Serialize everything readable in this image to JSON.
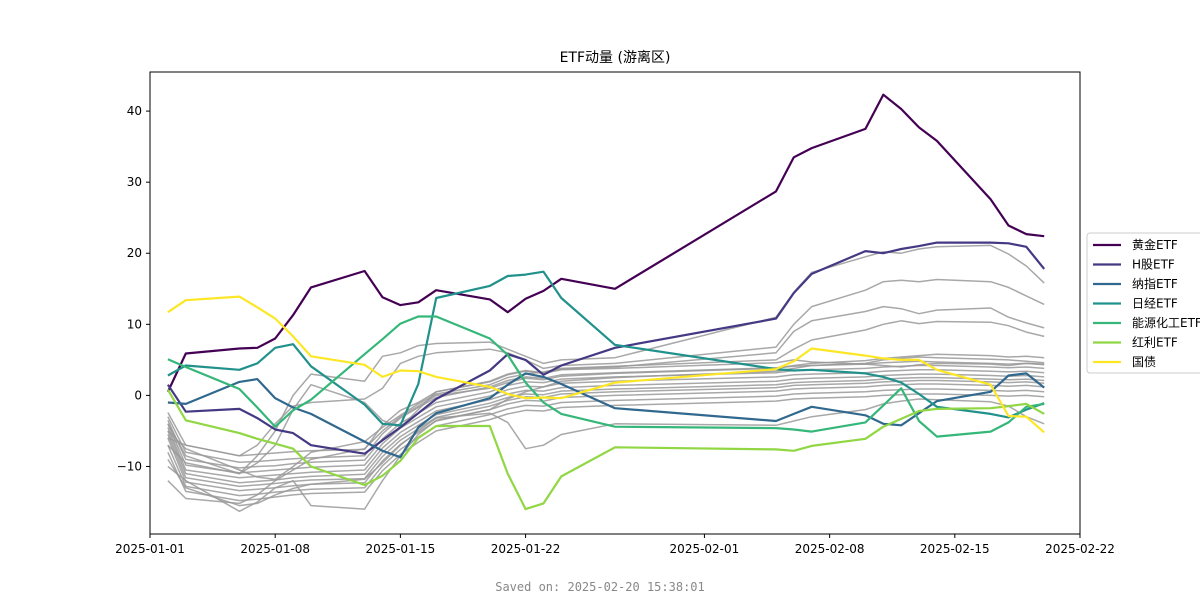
{
  "chart_data": {
    "type": "line",
    "title": "ETF动量 (游离区)",
    "xlabel": "",
    "ylabel": "",
    "x_range": [
      "2025-01-01",
      "2025-02-22"
    ],
    "ylim": [
      -19.5,
      45.5
    ],
    "x_ticks": [
      "2025-01-01",
      "2025-01-08",
      "2025-01-15",
      "2025-01-22",
      "2025-02-01",
      "2025-02-08",
      "2025-02-15",
      "2025-02-22"
    ],
    "y_ticks": [
      -10,
      0,
      10,
      20,
      30,
      40
    ],
    "grid": false,
    "legend_position": "right",
    "dates": [
      "2025-01-02",
      "2025-01-03",
      "2025-01-06",
      "2025-01-07",
      "2025-01-08",
      "2025-01-09",
      "2025-01-10",
      "2025-01-13",
      "2025-01-14",
      "2025-01-15",
      "2025-01-16",
      "2025-01-17",
      "2025-01-20",
      "2025-01-21",
      "2025-01-22",
      "2025-01-23",
      "2025-01-24",
      "2025-01-27",
      "2025-02-05",
      "2025-02-06",
      "2025-02-07",
      "2025-02-10",
      "2025-02-11",
      "2025-02-12",
      "2025-02-13",
      "2025-02-14",
      "2025-02-17",
      "2025-02-18",
      "2025-02-19",
      "2025-02-20"
    ],
    "series": [
      {
        "name": "黄金ETF",
        "color": "#440154",
        "values": [
          0.5,
          5.9,
          6.6,
          6.7,
          8.0,
          11.3,
          15.2,
          17.5,
          13.8,
          12.7,
          13.1,
          14.8,
          13.5,
          11.7,
          13.6,
          14.7,
          16.4,
          15.0,
          28.7,
          33.5,
          34.8,
          37.5,
          42.3,
          40.3,
          37.7,
          35.8,
          27.6,
          23.9,
          22.7,
          22.4
        ]
      },
      {
        "name": "H股ETF",
        "color": "#443983",
        "values": [
          1.5,
          -2.3,
          -1.9,
          -3.2,
          -4.8,
          -5.3,
          -7.0,
          -8.2,
          -6.3,
          -4.5,
          -2.5,
          -0.5,
          3.5,
          5.8,
          5.0,
          2.9,
          4.2,
          6.7,
          10.8,
          14.4,
          17.1,
          20.3,
          20.0,
          20.6,
          21.0,
          21.5,
          21.5,
          21.4,
          20.9,
          17.8
        ]
      },
      {
        "name": "纳指ETF",
        "color": "#31688e",
        "values": [
          -1.0,
          -1.2,
          1.9,
          2.3,
          -0.4,
          -1.7,
          -2.6,
          -6.5,
          -7.8,
          -8.7,
          -4.5,
          -2.5,
          -0.4,
          1.5,
          3.1,
          2.6,
          1.6,
          -1.8,
          -3.6,
          -2.6,
          -1.6,
          -2.8,
          -4.0,
          -4.2,
          -2.5,
          -0.8,
          0.5,
          2.8,
          3.1,
          1.1
        ]
      },
      {
        "name": "日经ETF",
        "color": "#21918c",
        "values": [
          2.8,
          4.2,
          3.6,
          4.5,
          6.7,
          7.2,
          4.1,
          -1.3,
          -4.0,
          -4.2,
          1.6,
          13.7,
          15.4,
          16.8,
          17.0,
          17.4,
          13.7,
          7.1,
          3.7,
          3.5,
          3.6,
          3.1,
          2.6,
          1.8,
          0.2,
          -1.6,
          -2.6,
          -3.1,
          -2.0,
          -1.1
        ]
      },
      {
        "name": "能源化工ETF",
        "color": "#35b779",
        "values": [
          5.1,
          4.0,
          0.9,
          -1.7,
          -4.4,
          -2.1,
          -0.6,
          5.8,
          7.9,
          10.1,
          11.1,
          11.1,
          8.0,
          5.7,
          1.8,
          -1.0,
          -2.6,
          -4.4,
          -4.6,
          -4.8,
          -5.1,
          -3.8,
          -1.4,
          1.0,
          -3.6,
          -5.8,
          -5.1,
          -3.8,
          -1.6,
          -1.2
        ]
      },
      {
        "name": "红利ETF",
        "color": "#90d743",
        "values": [
          0.8,
          -3.5,
          -5.3,
          -6.1,
          -6.8,
          -7.5,
          -10.0,
          -12.6,
          -11.3,
          -9.2,
          -6.0,
          -4.3,
          -4.3,
          -11.0,
          -16.0,
          -15.2,
          -11.4,
          -7.3,
          -7.6,
          -7.8,
          -7.1,
          -6.1,
          -4.4,
          -3.3,
          -2.2,
          -1.9,
          -1.8,
          -1.5,
          -1.2,
          -2.6
        ]
      },
      {
        "name": "国债",
        "color": "#fde725",
        "values": [
          11.7,
          13.4,
          13.9,
          12.4,
          10.8,
          8.3,
          5.5,
          4.3,
          2.6,
          3.5,
          3.4,
          2.6,
          1.2,
          0.2,
          -0.4,
          -0.3,
          -0.4,
          1.8,
          3.7,
          4.8,
          6.6,
          5.6,
          5.2,
          5.0,
          5.0,
          3.6,
          1.5,
          -2.9,
          -3.0,
          -5.2
        ]
      }
    ],
    "background_series_color": "#999999",
    "background_series": [
      [
        -2.4,
        -7.0,
        -8.5,
        -8.3,
        -8.1,
        -7.9,
        -7.8,
        -7.6,
        -4.2,
        -2.1,
        -1.0,
        0.5,
        1.9,
        2.9,
        3.4,
        3.1,
        3.6,
        3.8,
        4.6,
        5.0,
        4.7,
        4.4,
        4.2,
        4.0,
        4.3,
        4.5,
        4.4,
        4.2,
        4.5,
        4.4
      ],
      [
        -3.0,
        -8.0,
        -9.4,
        -9.3,
        -9.1,
        -8.9,
        -8.8,
        -8.5,
        -5.4,
        -3.2,
        -1.7,
        -0.3,
        1.2,
        2.1,
        2.6,
        2.4,
        2.9,
        3.2,
        3.9,
        4.1,
        4.2,
        4.4,
        4.6,
        4.7,
        4.8,
        4.7,
        4.5,
        4.4,
        4.5,
        4.3
      ],
      [
        -3.5,
        -9.0,
        -10.2,
        -10.0,
        -9.9,
        -9.6,
        -9.4,
        -9.1,
        -6.1,
        -3.9,
        -2.5,
        -1.0,
        0.5,
        1.4,
        1.9,
        1.8,
        2.3,
        2.6,
        3.2,
        3.5,
        3.6,
        3.8,
        4.0,
        4.1,
        4.2,
        4.2,
        4.0,
        3.9,
        4.0,
        3.8
      ],
      [
        -4.0,
        -9.8,
        -10.9,
        -10.7,
        -10.5,
        -10.3,
        -10.1,
        -9.8,
        -6.8,
        -4.6,
        -3.1,
        -1.6,
        -0.1,
        0.8,
        1.3,
        1.2,
        1.7,
        2.0,
        2.6,
        2.9,
        3.0,
        3.2,
        3.4,
        3.5,
        3.6,
        3.6,
        3.4,
        3.3,
        3.4,
        3.2
      ],
      [
        -4.5,
        -10.5,
        -11.6,
        -11.4,
        -11.2,
        -11.0,
        -10.8,
        -10.5,
        -7.4,
        -5.2,
        -3.7,
        -2.2,
        -0.6,
        0.2,
        0.7,
        0.6,
        1.1,
        1.4,
        2.0,
        2.3,
        2.4,
        2.6,
        2.8,
        2.9,
        3.0,
        3.0,
        2.8,
        2.7,
        2.8,
        2.6
      ],
      [
        -5.0,
        -11.0,
        -12.3,
        -12.1,
        -11.9,
        -11.6,
        -11.4,
        -11.1,
        -8.0,
        -5.8,
        -4.2,
        -2.7,
        -1.1,
        -0.3,
        0.2,
        0.1,
        0.6,
        0.9,
        1.5,
        1.8,
        1.9,
        2.1,
        2.3,
        2.4,
        2.5,
        2.5,
        2.3,
        2.2,
        2.3,
        2.1
      ],
      [
        -5.5,
        -11.6,
        -12.8,
        -12.6,
        -12.4,
        -12.1,
        -11.9,
        -11.7,
        -8.6,
        -6.3,
        -4.7,
        -3.1,
        -1.5,
        -0.7,
        -0.2,
        -0.3,
        0.2,
        0.5,
        1.1,
        1.4,
        1.5,
        1.7,
        1.9,
        2.0,
        2.1,
        2.1,
        1.9,
        1.8,
        1.9,
        1.7
      ],
      [
        -6.0,
        -12.2,
        -13.4,
        -13.2,
        -13.0,
        -12.7,
        -12.5,
        -12.3,
        -9.2,
        -6.9,
        -5.2,
        -3.6,
        -2.0,
        -1.2,
        -0.7,
        -0.8,
        -0.3,
        0.0,
        0.6,
        0.9,
        1.0,
        1.2,
        1.4,
        1.5,
        1.6,
        1.6,
        1.4,
        1.3,
        1.4,
        1.2
      ],
      [
        -7.0,
        -12.8,
        -14.1,
        -13.9,
        -13.6,
        -13.4,
        -13.2,
        -13.0,
        -9.9,
        -7.6,
        -5.9,
        -4.3,
        -2.7,
        -1.9,
        -1.4,
        -1.5,
        -1.0,
        -0.7,
        -0.1,
        0.2,
        0.3,
        0.5,
        0.7,
        0.8,
        0.9,
        0.9,
        0.7,
        0.6,
        0.7,
        0.5
      ],
      [
        -8.0,
        -13.5,
        -14.8,
        -14.6,
        -14.3,
        -14.0,
        -13.8,
        -13.6,
        -10.6,
        -8.3,
        -6.6,
        -5.0,
        -3.4,
        -2.6,
        -2.1,
        -2.2,
        -1.7,
        -1.4,
        -0.8,
        -0.5,
        -0.4,
        -0.2,
        0.0,
        0.1,
        0.2,
        0.2,
        0.0,
        -0.1,
        0.0,
        -0.2
      ],
      [
        -9.0,
        -13.0,
        -15.5,
        -15.2,
        -14.0,
        -13.1,
        -12.5,
        -11.8,
        -9.5,
        -7.0,
        -5.0,
        -3.2,
        -2.5,
        -3.8,
        -7.5,
        -7.0,
        -5.5,
        -4.0,
        -4.2,
        -3.6,
        -3.0,
        -2.0,
        -1.2,
        -0.8,
        -0.5,
        -0.6,
        -0.9,
        -1.5,
        -3.0,
        -4.0
      ],
      [
        -10.0,
        -12.0,
        -16.3,
        -15.0,
        -13.0,
        -12.0,
        -15.5,
        -16.0,
        -12.0,
        -8.5,
        -5.5,
        -3.5,
        -2.0,
        -0.5,
        0.5,
        1.2,
        2.0,
        2.5,
        3.4,
        3.8,
        4.2,
        4.5,
        5.0,
        5.2,
        5.4,
        5.3,
        5.1,
        5.0,
        4.8,
        4.6
      ],
      [
        -12.0,
        -14.5,
        -15.2,
        -14.0,
        -12.0,
        -10.5,
        -9.0,
        -7.5,
        -5.0,
        -3.0,
        -1.5,
        0.0,
        1.0,
        1.8,
        2.4,
        2.2,
        2.7,
        3.1,
        3.8,
        4.2,
        4.5,
        4.9,
        5.2,
        5.4,
        5.6,
        5.8,
        5.6,
        5.4,
        5.5,
        5.3
      ],
      [
        -5.0,
        -7.5,
        -10.5,
        -11.5,
        -11.8,
        -10.0,
        -8.0,
        -6.5,
        -4.5,
        -2.8,
        -1.2,
        0.2,
        1.5,
        2.5,
        3.0,
        3.3,
        3.8,
        4.1,
        5.0,
        6.5,
        7.8,
        9.2,
        10.0,
        10.5,
        10.1,
        10.4,
        10.3,
        9.8,
        8.9,
        8.3
      ],
      [
        -4.0,
        -8.5,
        -11.0,
        -9.5,
        -7.0,
        -2.0,
        1.5,
        -1.0,
        -3.5,
        -4.5,
        -2.0,
        0.5,
        2.0,
        3.0,
        3.5,
        3.2,
        3.7,
        4.0,
        6.0,
        9.0,
        10.5,
        11.8,
        12.5,
        12.2,
        11.5,
        12.0,
        12.3,
        11.0,
        10.2,
        9.5
      ],
      [
        -6.0,
        -7.0,
        -8.5,
        -7.0,
        -4.0,
        -1.5,
        -1.0,
        -0.5,
        1.0,
        4.5,
        5.5,
        6.0,
        6.5,
        6.0,
        5.0,
        3.8,
        4.2,
        4.5,
        6.8,
        10.0,
        12.5,
        14.8,
        16.0,
        16.2,
        16.0,
        16.3,
        16.0,
        15.2,
        14.0,
        12.8
      ],
      [
        -7.0,
        -9.5,
        -11.0,
        -8.5,
        -5.0,
        0.0,
        3.0,
        2.0,
        5.5,
        6.0,
        7.0,
        7.3,
        7.5,
        6.5,
        5.5,
        4.5,
        5.0,
        5.3,
        11.0,
        14.5,
        17.3,
        19.5,
        20.2,
        20.0,
        20.6,
        20.9,
        21.1,
        19.9,
        18.2,
        15.8
      ]
    ]
  },
  "footer_text": "Saved on: 2025-02-20 15:38:01"
}
